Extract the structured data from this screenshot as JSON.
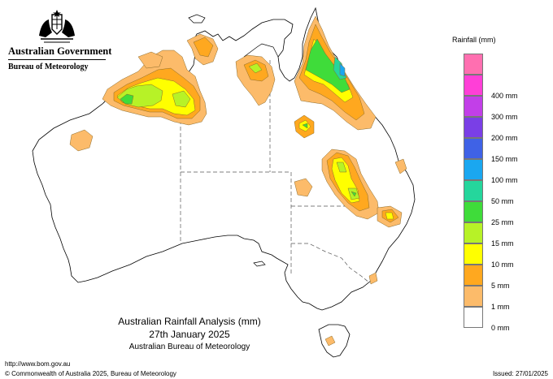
{
  "header": {
    "government": "Australian Government",
    "bureau": "Bureau of Meteorology"
  },
  "title": {
    "line1": "Australian Rainfall Analysis (mm)",
    "line2": "27th January 2025",
    "line3": "Australian Bureau of Meteorology"
  },
  "footer": {
    "url": "http://www.bom.gov.au",
    "copyright": "© Commonwealth of Australia 2025, Bureau of Meteorology",
    "issued": "Issued: 27/01/2025"
  },
  "legend": {
    "title": "Rainfall (mm)",
    "items": [
      {
        "label": "",
        "color": "#ff6fb0"
      },
      {
        "label": "400 mm",
        "color": "#ff3fd7"
      },
      {
        "label": "300 mm",
        "color": "#c23fe8"
      },
      {
        "label": "200 mm",
        "color": "#7a3fe6"
      },
      {
        "label": "150 mm",
        "color": "#3f62e6"
      },
      {
        "label": "100 mm",
        "color": "#1aa7f0"
      },
      {
        "label": "50 mm",
        "color": "#25d69c"
      },
      {
        "label": "25 mm",
        "color": "#3fdc3a"
      },
      {
        "label": "15 mm",
        "color": "#b7f227"
      },
      {
        "label": "10 mm",
        "color": "#ffff00"
      },
      {
        "label": "5 mm",
        "color": "#ffa81f"
      },
      {
        "label": "1 mm",
        "color": "#fcbb6a"
      },
      {
        "label": "0 mm",
        "color": "#ffffff"
      }
    ]
  }
}
